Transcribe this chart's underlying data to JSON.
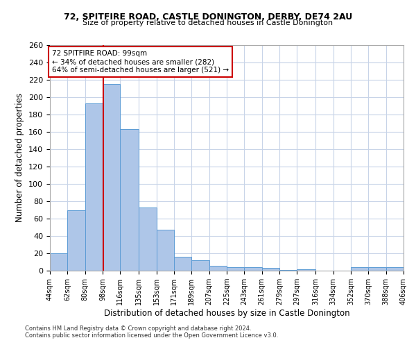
{
  "title1": "72, SPITFIRE ROAD, CASTLE DONINGTON, DERBY, DE74 2AU",
  "title2": "Size of property relative to detached houses in Castle Donington",
  "xlabel": "Distribution of detached houses by size in Castle Donington",
  "ylabel": "Number of detached properties",
  "footer1": "Contains HM Land Registry data © Crown copyright and database right 2024.",
  "footer2": "Contains public sector information licensed under the Open Government Licence v3.0.",
  "annotation_line1": "72 SPITFIRE ROAD: 99sqm",
  "annotation_line2": "← 34% of detached houses are smaller (282)",
  "annotation_line3": "64% of semi-detached houses are larger (521) →",
  "property_size": 99,
  "bin_edges": [
    44,
    62,
    80,
    98,
    116,
    135,
    153,
    171,
    189,
    207,
    225,
    243,
    261,
    279,
    297,
    316,
    334,
    352,
    370,
    388,
    406
  ],
  "bin_labels": [
    "44sqm",
    "62sqm",
    "80sqm",
    "98sqm",
    "116sqm",
    "135sqm",
    "153sqm",
    "171sqm",
    "189sqm",
    "207sqm",
    "225sqm",
    "243sqm",
    "261sqm",
    "279sqm",
    "297sqm",
    "316sqm",
    "334sqm",
    "352sqm",
    "370sqm",
    "388sqm",
    "406sqm"
  ],
  "counts": [
    20,
    70,
    193,
    215,
    163,
    73,
    47,
    16,
    12,
    6,
    4,
    4,
    3,
    1,
    2,
    0,
    0,
    4,
    4,
    4
  ],
  "bar_color": "#aec6e8",
  "bar_edge_color": "#5b9bd5",
  "vline_color": "#cc0000",
  "annotation_box_color": "#cc0000",
  "background_color": "#ffffff",
  "grid_color": "#c8d4e8",
  "ylim": [
    0,
    260
  ],
  "yticks": [
    0,
    20,
    40,
    60,
    80,
    100,
    120,
    140,
    160,
    180,
    200,
    220,
    240,
    260
  ]
}
